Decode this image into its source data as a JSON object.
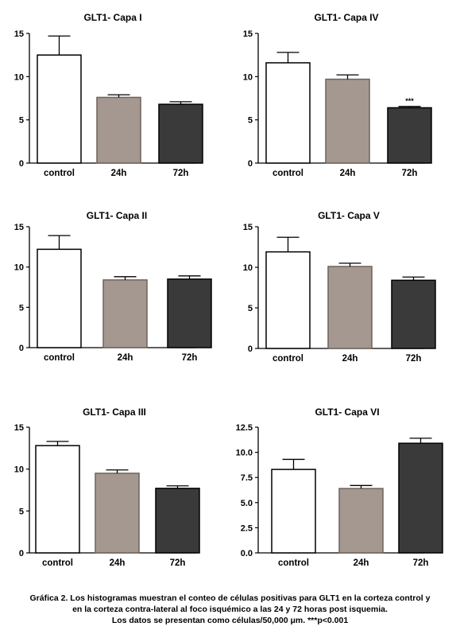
{
  "chart_data": [
    {
      "type": "bar",
      "title": "GLT1- Capa I",
      "categories": [
        "control",
        "24h",
        "72h"
      ],
      "values": [
        12.5,
        7.6,
        6.8
      ],
      "errors": [
        2.2,
        0.3,
        0.3
      ],
      "yticks": [
        "0",
        "5",
        "10",
        "15"
      ],
      "ylim": [
        0,
        15
      ],
      "bar_colors": [
        "#ffffff",
        "#a59890",
        "#3a3a3a"
      ],
      "significance": [
        "",
        "",
        ""
      ]
    },
    {
      "type": "bar",
      "title": "GLT1- Capa IV",
      "categories": [
        "control",
        "24h",
        "72h"
      ],
      "values": [
        11.6,
        9.7,
        6.4
      ],
      "errors": [
        1.2,
        0.5,
        0.15
      ],
      "yticks": [
        "0",
        "5",
        "10",
        "15"
      ],
      "ylim": [
        0,
        15
      ],
      "bar_colors": [
        "#ffffff",
        "#a59890",
        "#3a3a3a"
      ],
      "significance": [
        "",
        "",
        "***"
      ]
    },
    {
      "type": "bar",
      "title": "GLT1- Capa II",
      "categories": [
        "control",
        "24h",
        "72h"
      ],
      "values": [
        12.2,
        8.4,
        8.5
      ],
      "errors": [
        1.7,
        0.4,
        0.4
      ],
      "yticks": [
        "0",
        "5",
        "10",
        "15"
      ],
      "ylim": [
        0,
        15
      ],
      "bar_colors": [
        "#ffffff",
        "#a59890",
        "#3a3a3a"
      ],
      "significance": [
        "",
        "",
        ""
      ]
    },
    {
      "type": "bar",
      "title": "GLT1- Capa V",
      "categories": [
        "control",
        "24h",
        "72h"
      ],
      "values": [
        11.9,
        10.1,
        8.4
      ],
      "errors": [
        1.8,
        0.4,
        0.4
      ],
      "yticks": [
        "0",
        "5",
        "10",
        "15"
      ],
      "ylim": [
        0,
        15
      ],
      "bar_colors": [
        "#ffffff",
        "#a59890",
        "#3a3a3a"
      ],
      "significance": [
        "",
        "",
        ""
      ]
    },
    {
      "type": "bar",
      "title": "GLT1- Capa III",
      "categories": [
        "control",
        "24h",
        "72h"
      ],
      "values": [
        12.8,
        9.5,
        7.7
      ],
      "errors": [
        0.5,
        0.4,
        0.3
      ],
      "yticks": [
        "0",
        "5",
        "10",
        "15"
      ],
      "ylim": [
        0,
        15
      ],
      "bar_colors": [
        "#ffffff",
        "#a59890",
        "#3a3a3a"
      ],
      "significance": [
        "",
        "",
        ""
      ]
    },
    {
      "type": "bar",
      "title": "GLT1- Capa VI",
      "categories": [
        "control",
        "24h",
        "72h"
      ],
      "values": [
        8.3,
        6.4,
        10.9
      ],
      "errors": [
        1.0,
        0.3,
        0.5
      ],
      "yticks": [
        "0.0",
        "2.5",
        "5.0",
        "7.5",
        "10.0",
        "12.5"
      ],
      "ylim": [
        0,
        12.5
      ],
      "bar_colors": [
        "#ffffff",
        "#a59890",
        "#3a3a3a"
      ],
      "significance": [
        "",
        "",
        ""
      ]
    }
  ],
  "caption": {
    "line1": "Gráfica 2. Los histogramas muestran el conteo de células positivas para GLT1 en la corteza control y",
    "line2": "en la corteza contra-lateral al foco isquémico a las 24 y 72 horas post isquemia.",
    "line3": "Los datos se presentan como células/50,000 μm. ***p<0.001"
  }
}
